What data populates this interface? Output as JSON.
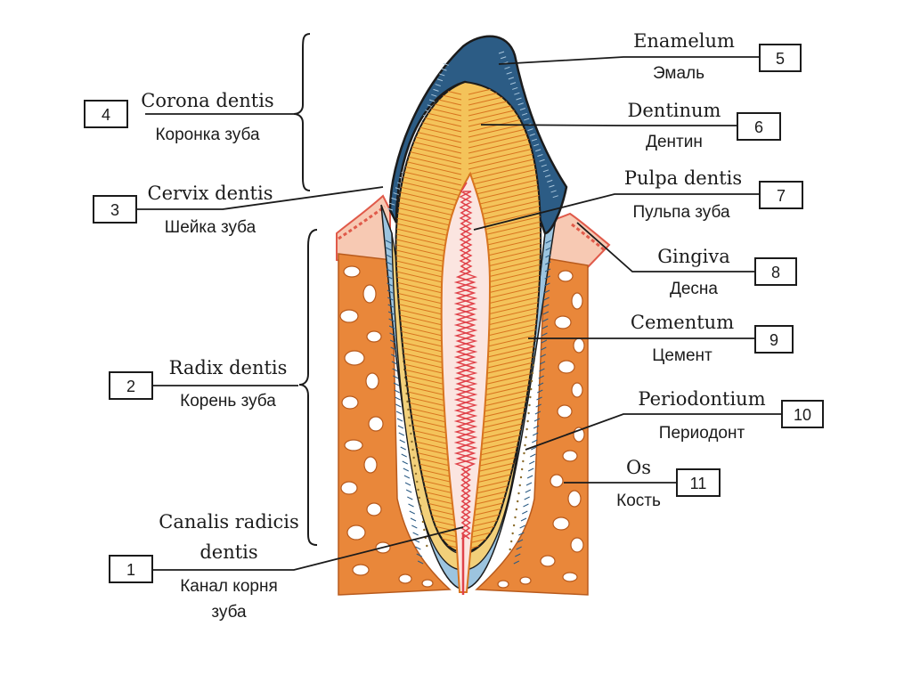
{
  "labels": [
    {
      "number": "1",
      "latin": "Canalis radicis",
      "latin2": "dentis",
      "russian": "Канал корня",
      "russian2": "зуба"
    },
    {
      "number": "2",
      "latin": "Radix dentis",
      "russian": "Корень зуба"
    },
    {
      "number": "3",
      "latin": "Cervix dentis",
      "russian": "Шейка зуба"
    },
    {
      "number": "4",
      "latin": "Corona dentis",
      "russian": "Коронка зуба"
    },
    {
      "number": "5",
      "latin": "Enamelum",
      "russian": "Эмаль"
    },
    {
      "number": "6",
      "latin": "Dentinum",
      "russian": "Дентин"
    },
    {
      "number": "7",
      "latin": "Pulpa dentis",
      "russian": "Пульпа зуба"
    },
    {
      "number": "8",
      "latin": "Gingiva",
      "russian": "Десна"
    },
    {
      "number": "9",
      "latin": "Cementum",
      "russian": "Цемент"
    },
    {
      "number": "10",
      "latin": "Periodontium",
      "russian": "Периодонт"
    },
    {
      "number": "11",
      "latin": "Os",
      "russian": "Кость"
    }
  ],
  "colors": {
    "enamel": "#2c5c85",
    "dentin": "#f4c35a",
    "dentin_lines": "#d8741f",
    "pulp": "#fbe5e0",
    "pulp_vessels": "#e0424a",
    "cementum": "#f2d07a",
    "periodontium": "#9cc4df",
    "bone": "#e9873a",
    "bone_holes": "#ffffff",
    "gingiva": "#f7c9b3",
    "gingiva_edge": "#e05a4a"
  }
}
